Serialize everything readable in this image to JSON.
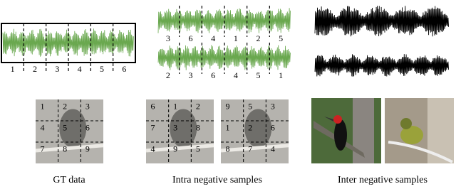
{
  "gt": {
    "caption": "GT data",
    "wave_labels": [
      "1",
      "2",
      "3",
      "4",
      "5",
      "6"
    ],
    "grid_labels": [
      "1",
      "2",
      "3",
      "4",
      "5",
      "6",
      "7",
      "8",
      "9"
    ]
  },
  "intra": {
    "caption": "Intra negative samples",
    "wave_labels": [
      [
        "3",
        "6",
        "4",
        "1",
        "2",
        "5"
      ],
      [
        "2",
        "3",
        "6",
        "4",
        "5",
        "1"
      ]
    ],
    "grid_labels": [
      [
        "6",
        "1",
        "2",
        "7",
        "3",
        "8",
        "4",
        "9",
        "5"
      ],
      [
        "9",
        "5",
        "3",
        "1",
        "2",
        "6",
        "8",
        "7",
        "4"
      ]
    ]
  },
  "inter": {
    "caption": "Inter negative samples"
  }
}
